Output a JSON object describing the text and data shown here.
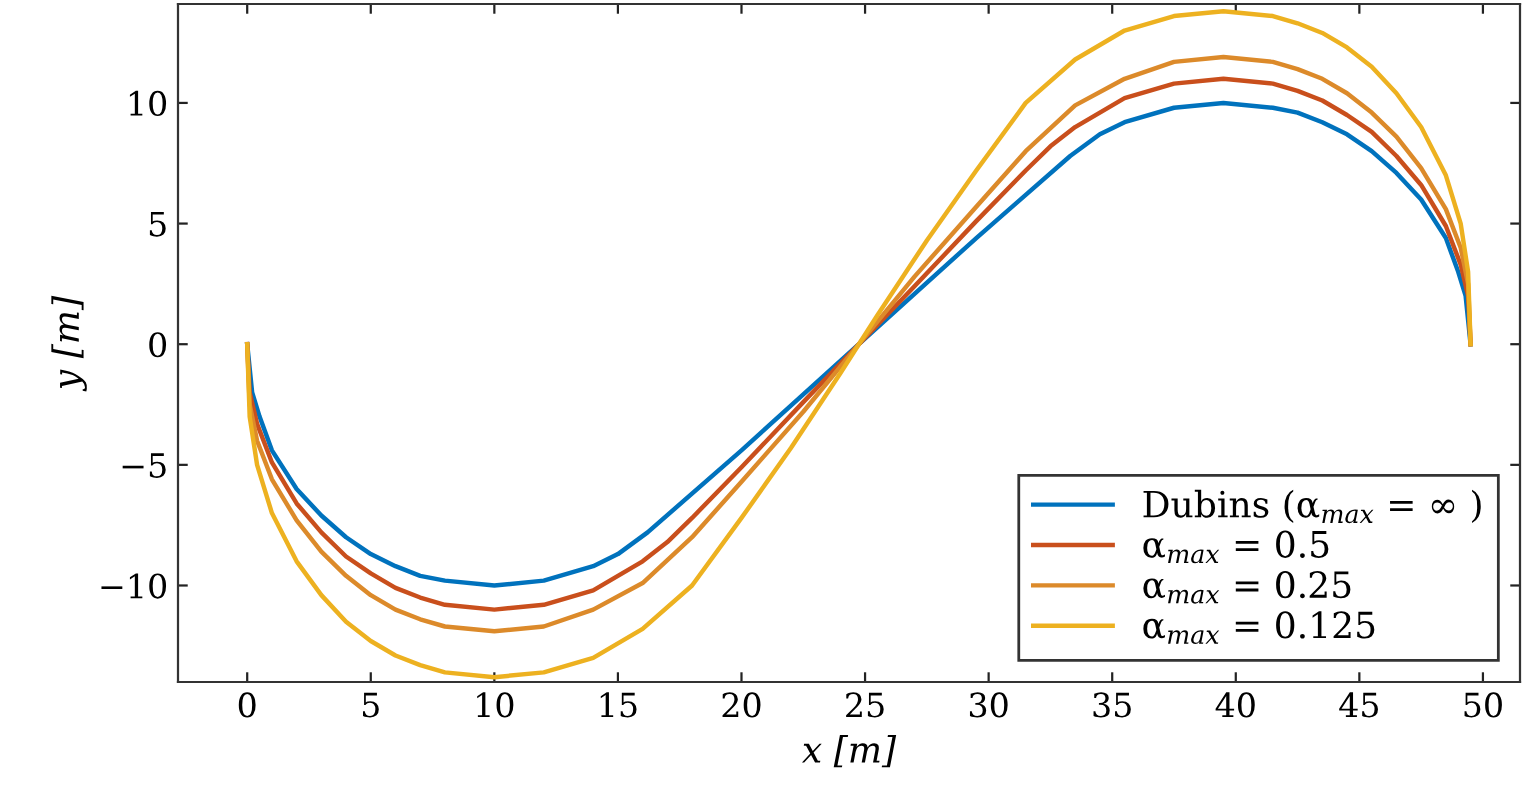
{
  "chart_data": {
    "type": "line",
    "xlabel": "x [m]",
    "ylabel": "y [m]",
    "xlim": [
      -2.8,
      51.5
    ],
    "ylim": [
      -14,
      14.1
    ],
    "xticks": [
      0,
      5,
      10,
      15,
      20,
      25,
      30,
      35,
      40,
      45,
      50
    ],
    "yticks": [
      -10,
      -5,
      0,
      5,
      10
    ],
    "legend": "bottom right",
    "grid": false,
    "marker": "none",
    "line_style": "solid",
    "series": [
      {
        "name": "Dubins (α$_{max}$ = ∞ )",
        "color": "#0072bd",
        "x": [
          0,
          0.2,
          0.5,
          1,
          2,
          3,
          4,
          5,
          6,
          7,
          8,
          10,
          12,
          14,
          15,
          16.2,
          20,
          24.75,
          29.5,
          33.3,
          34.5,
          35.5,
          37.5,
          39.5,
          41.5,
          42.5,
          43.5,
          44.5,
          45.5,
          46.5,
          47.5,
          48.5,
          49,
          49.3,
          49.5
        ],
        "values": [
          0,
          -2,
          -3,
          -4.4,
          -6,
          -7.1,
          -8,
          -8.7,
          -9.2,
          -9.6,
          -9.8,
          -10,
          -9.8,
          -9.2,
          -8.7,
          -7.8,
          -4.4,
          0,
          4.4,
          7.8,
          8.7,
          9.2,
          9.8,
          10,
          9.8,
          9.6,
          9.2,
          8.7,
          8,
          7.1,
          6,
          4.4,
          3,
          2,
          0
        ]
      },
      {
        "name": "α$_{max}$ = 0.5",
        "color": "#c94f1c",
        "x": [
          0,
          0.1,
          0.4,
          1,
          2,
          3,
          4,
          5,
          6,
          7,
          8,
          10,
          12,
          14,
          16,
          17,
          18,
          20,
          22.5,
          24.75,
          27,
          29.5,
          31.5,
          32.5,
          33.5,
          35.5,
          37.5,
          39.5,
          41.5,
          42.5,
          43.5,
          44.5,
          45.5,
          46.5,
          47.5,
          48.5,
          49.1,
          49.4,
          49.5
        ],
        "values": [
          0,
          -2,
          -3.3,
          -4.9,
          -6.6,
          -7.8,
          -8.8,
          -9.5,
          -10.1,
          -10.5,
          -10.8,
          -11,
          -10.8,
          -10.2,
          -9,
          -8.2,
          -7.2,
          -5.1,
          -2.4,
          0,
          2.4,
          5.1,
          7.2,
          8.2,
          9,
          10.2,
          10.8,
          11,
          10.8,
          10.5,
          10.1,
          9.5,
          8.8,
          7.8,
          6.6,
          4.9,
          3.3,
          2,
          0
        ]
      },
      {
        "name": "α$_{max}$ = 0.25",
        "color": "#dc8a2a",
        "x": [
          0,
          0.1,
          0.4,
          1,
          2,
          3,
          4,
          5,
          6,
          7,
          8,
          10,
          12,
          14,
          16,
          18,
          20,
          22.5,
          24.75,
          27,
          29.5,
          31.5,
          33.5,
          35.5,
          37.5,
          39.5,
          41.5,
          42.5,
          43.5,
          44.5,
          45.5,
          46.5,
          47.5,
          48.5,
          49.1,
          49.4,
          49.5
        ],
        "values": [
          0,
          -2.5,
          -4,
          -5.6,
          -7.3,
          -8.6,
          -9.6,
          -10.4,
          -11,
          -11.4,
          -11.7,
          -11.9,
          -11.7,
          -11,
          -9.9,
          -8,
          -5.7,
          -2.8,
          0,
          2.8,
          5.7,
          8,
          9.9,
          11,
          11.7,
          11.9,
          11.7,
          11.4,
          11,
          10.4,
          9.6,
          8.6,
          7.3,
          5.6,
          4,
          2.5,
          0
        ]
      },
      {
        "name": "α$_{max}$ = 0.125",
        "color": "#edb120",
        "x": [
          0,
          0.1,
          0.4,
          1,
          2,
          3,
          4,
          5,
          6,
          7,
          8,
          10,
          12,
          14,
          16,
          18,
          20,
          22,
          24,
          24.75,
          25.5,
          27.5,
          29.5,
          31.5,
          33.5,
          35.5,
          37.5,
          39.5,
          41.5,
          42.5,
          43.5,
          44.5,
          45.5,
          46.5,
          47.5,
          48.5,
          49.1,
          49.4,
          49.5
        ],
        "values": [
          0,
          -3,
          -5,
          -7,
          -9,
          -10.4,
          -11.5,
          -12.3,
          -12.9,
          -13.3,
          -13.6,
          -13.8,
          -13.6,
          -13,
          -11.8,
          -10,
          -7.2,
          -4.3,
          -1.2,
          0,
          1.2,
          4.3,
          7.2,
          10,
          11.8,
          13,
          13.6,
          13.8,
          13.6,
          13.3,
          12.9,
          12.3,
          11.5,
          10.4,
          9,
          7,
          5,
          3,
          0
        ]
      }
    ]
  }
}
